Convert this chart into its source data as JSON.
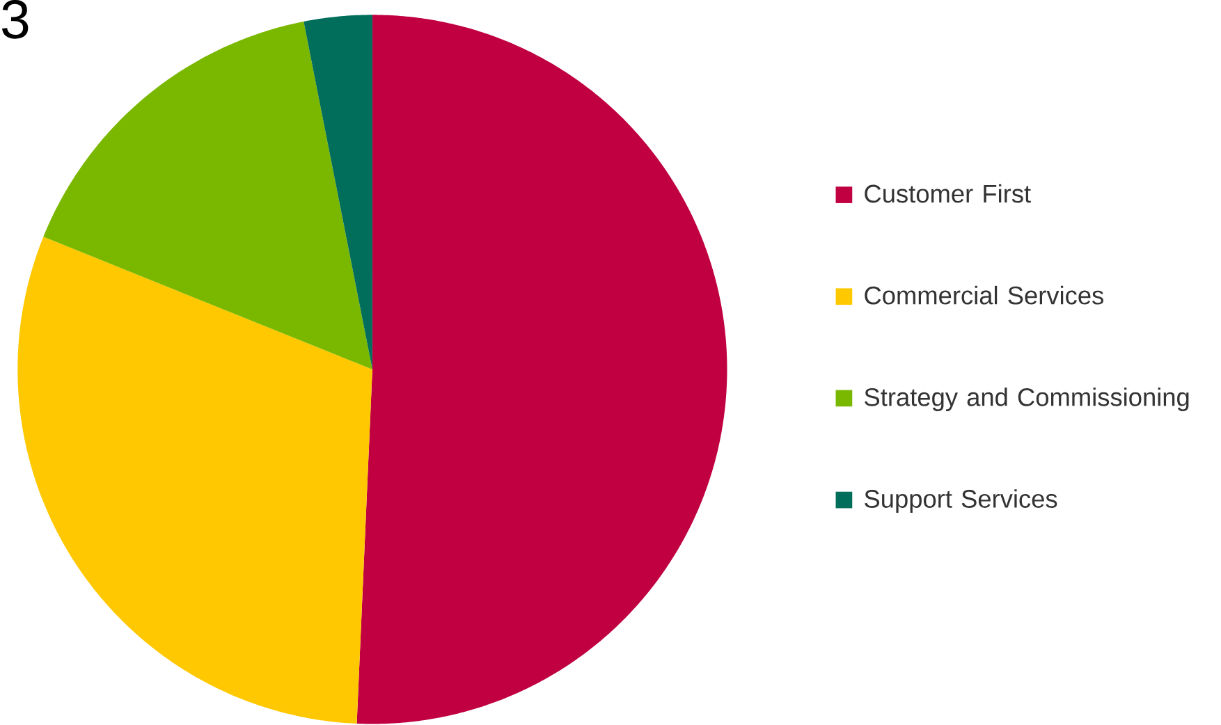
{
  "chart_data": {
    "type": "pie",
    "title": "3",
    "categories": [
      "Customer First",
      "Commercial Services",
      "Strategy and Commissioning",
      "Support Services"
    ],
    "values": [
      50.7,
      30.4,
      15.8,
      3.1
    ],
    "colors": [
      "#c00040",
      "#ffc800",
      "#7ab800",
      "#006e5a"
    ],
    "legend": "right"
  }
}
